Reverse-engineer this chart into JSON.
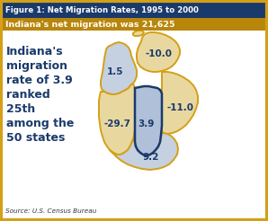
{
  "title": "Figure 1: Net Migration Rates, 1995 to 2000",
  "subtitle": "Indiana's net migration was 21,625",
  "source": "Source: U.S. Census Bureau",
  "main_text_lines": [
    "Indiana's",
    "migration",
    "rate of 3.9",
    "ranked",
    "25th",
    "among the",
    "50 states"
  ],
  "title_bg": "#1a3a6b",
  "subtitle_bg": "#b8860b",
  "bg_color": "#ffffff",
  "title_color": "#ffffff",
  "subtitle_color": "#ffffff",
  "main_text_color": "#1a3a6b",
  "border_color": "#d4a017",
  "state_outline_color": "#d4a017",
  "indiana_outline_color": "#1a3a6b",
  "states": {
    "Wisconsin": {
      "value": "1.5",
      "color": "#c5d0e0"
    },
    "Michigan": {
      "value": "-10.0",
      "color": "#e8d8a0"
    },
    "Illinois": {
      "value": "-29.7",
      "color": "#e8d8a0"
    },
    "Indiana": {
      "value": "3.9",
      "color": "#b0c0d8"
    },
    "Ohio": {
      "value": "-11.0",
      "color": "#e8d8a0"
    },
    "Kentucky": {
      "value": "9.2",
      "color": "#c5d0e0"
    }
  }
}
